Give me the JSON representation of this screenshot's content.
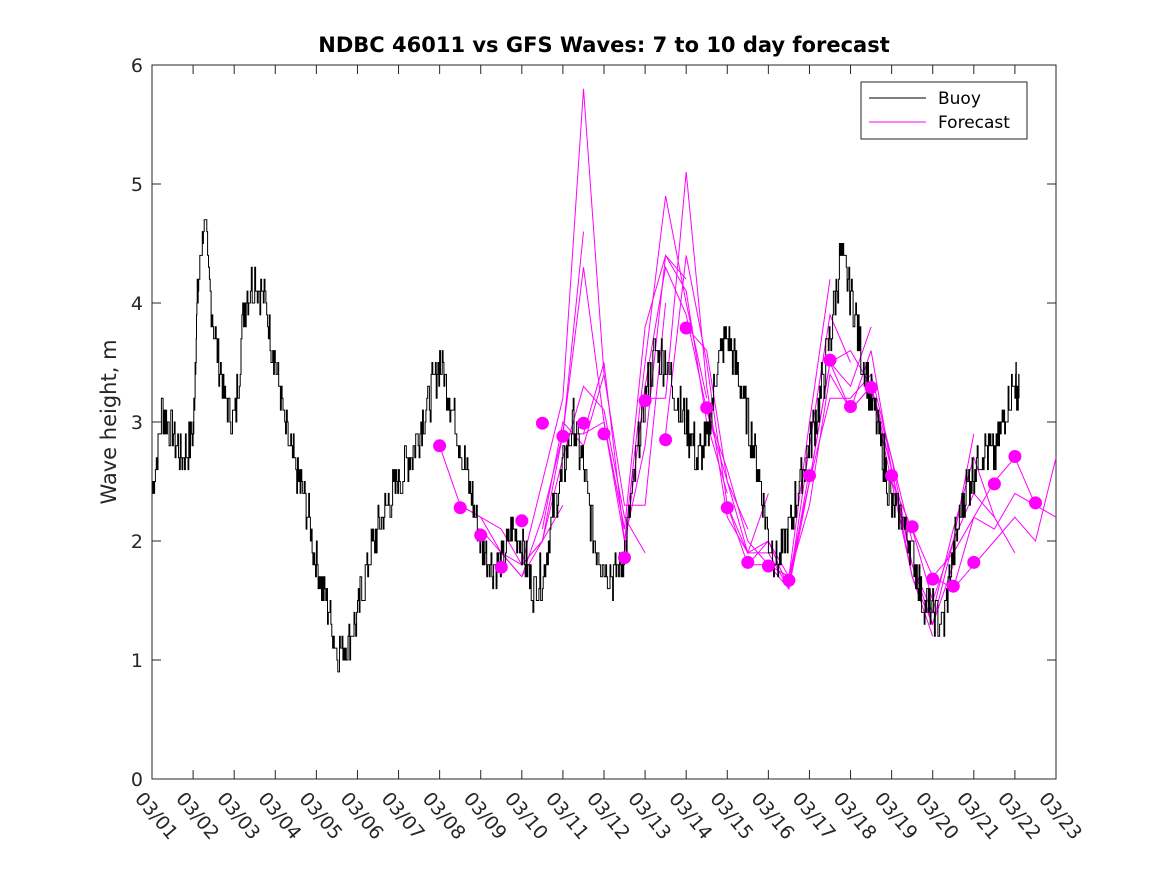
{
  "chart_data": {
    "type": "line",
    "title": "NDBC 46011 vs GFS Waves: 7 to 10 day forecast",
    "xlabel": "",
    "ylabel": "Wave height, m",
    "xlim": [
      0,
      22
    ],
    "ylim": [
      0,
      6
    ],
    "yticks": [
      0,
      1,
      2,
      3,
      4,
      5,
      6
    ],
    "xtick_labels": [
      "03/01",
      "03/02",
      "03/03",
      "03/04",
      "03/05",
      "03/06",
      "03/07",
      "03/08",
      "03/09",
      "03/10",
      "03/11",
      "03/12",
      "03/13",
      "03/14",
      "03/15",
      "03/16",
      "03/17",
      "03/18",
      "03/19",
      "03/20",
      "03/21",
      "03/22",
      "03/23"
    ],
    "grid": false,
    "legend": {
      "location": "top-right",
      "entries": [
        "Buoy",
        "Forecast"
      ]
    },
    "colors": {
      "buoy": "#000000",
      "forecast": "#ff00ff"
    },
    "buoy": {
      "name": "Buoy",
      "x": [
        0,
        0.25,
        0.5,
        0.75,
        1.0,
        1.1,
        1.25,
        1.5,
        1.75,
        2.0,
        2.25,
        2.5,
        2.75,
        3.0,
        3.25,
        3.5,
        3.75,
        4.0,
        4.25,
        4.5,
        4.75,
        5.0,
        5.25,
        5.5,
        5.75,
        6.0,
        6.25,
        6.5,
        6.75,
        7.0,
        7.25,
        7.5,
        7.75,
        8.0,
        8.25,
        8.5,
        8.75,
        9.0,
        9.25,
        9.5,
        9.75,
        10.0,
        10.25,
        10.5,
        10.75,
        11.0,
        11.25,
        11.5,
        11.75,
        12.0,
        12.25,
        12.5,
        12.75,
        13.0,
        13.25,
        13.5,
        13.75,
        14.0,
        14.25,
        14.5,
        14.75,
        15.0,
        15.25,
        15.5,
        15.75,
        16.0,
        16.25,
        16.5,
        16.75,
        17.0,
        17.25,
        17.5,
        17.75,
        18.0,
        18.25,
        18.5,
        18.75,
        19.0,
        19.25,
        19.5,
        19.75,
        20.0,
        20.25,
        20.5,
        20.75,
        21.0,
        21.1
      ],
      "values": [
        2.4,
        3.1,
        2.9,
        2.7,
        2.9,
        4.0,
        4.7,
        3.8,
        3.2,
        3.0,
        4.0,
        4.2,
        4.0,
        3.5,
        2.9,
        2.6,
        2.3,
        1.8,
        1.5,
        1.1,
        1.15,
        1.4,
        1.8,
        2.1,
        2.3,
        2.5,
        2.7,
        2.9,
        3.2,
        3.5,
        3.2,
        2.8,
        2.4,
        2.0,
        1.8,
        1.8,
        2.1,
        2.0,
        1.6,
        1.7,
        2.2,
        2.6,
        3.0,
        2.6,
        2.0,
        1.8,
        1.7,
        1.9,
        2.6,
        3.2,
        3.6,
        3.5,
        3.2,
        3.0,
        2.7,
        2.8,
        3.5,
        3.7,
        3.4,
        3.0,
        2.6,
        2.0,
        1.8,
        2.1,
        2.5,
        2.8,
        3.2,
        3.7,
        4.4,
        4.1,
        3.6,
        3.2,
        2.8,
        2.3,
        2.2,
        1.9,
        1.5,
        1.4,
        1.3,
        1.9,
        2.4,
        2.6,
        2.8,
        2.7,
        3.1,
        3.3,
        3.2
      ]
    },
    "forecasts": [
      {
        "x": [
          7.0,
          7.5,
          8.0,
          8.5,
          9.0,
          9.5,
          10.0
        ],
        "values": [
          2.8,
          2.3,
          2.2,
          2.1,
          1.8,
          2.0,
          2.3
        ]
      },
      {
        "x": [
          7.5,
          8.0,
          8.5,
          9.0,
          9.5,
          10.0,
          10.5
        ],
        "values": [
          2.3,
          2.2,
          1.9,
          1.7,
          2.0,
          2.9,
          4.6
        ]
      },
      {
        "x": [
          8.0,
          8.5,
          9.0,
          9.5,
          10.0,
          10.5,
          11.0
        ],
        "values": [
          2.1,
          1.9,
          1.8,
          2.5,
          3.2,
          5.8,
          3.4
        ]
      },
      {
        "x": [
          8.5,
          9.0,
          9.5,
          10.0,
          10.5,
          11.0,
          11.5
        ],
        "values": [
          1.9,
          1.7,
          2.2,
          2.9,
          4.3,
          3.0,
          2.1
        ]
      },
      {
        "x": [
          9.0,
          9.5,
          10.0,
          10.5,
          11.0,
          11.5,
          12.0
        ],
        "values": [
          1.8,
          2.0,
          2.7,
          3.3,
          3.1,
          2.2,
          1.9
        ]
      },
      {
        "x": [
          9.5,
          10.0,
          10.5,
          11.0,
          11.5,
          12.0,
          12.5
        ],
        "values": [
          2.1,
          3.0,
          2.8,
          3.4,
          2.3,
          2.3,
          4.0
        ]
      },
      {
        "x": [
          10.0,
          10.5,
          11.0,
          11.5,
          12.0,
          12.5,
          13.0
        ],
        "values": [
          2.9,
          2.9,
          3.0,
          2.0,
          2.8,
          4.4,
          4.2
        ]
      },
      {
        "x": [
          10.5,
          11.0,
          11.5,
          12.0,
          12.5,
          13.0,
          13.5
        ],
        "values": [
          2.9,
          3.5,
          2.0,
          3.5,
          4.9,
          4.0,
          3.2
        ]
      },
      {
        "x": [
          11.0,
          11.5,
          12.0,
          12.5,
          13.0,
          13.5,
          14.0
        ],
        "values": [
          3.0,
          2.1,
          3.8,
          4.4,
          4.1,
          3.0,
          2.4
        ]
      },
      {
        "x": [
          11.5,
          12.0,
          12.5,
          13.0,
          13.5,
          14.0,
          14.5
        ],
        "values": [
          1.9,
          3.3,
          4.3,
          3.9,
          3.1,
          2.5,
          2.1
        ]
      },
      {
        "x": [
          12.0,
          12.5,
          13.0,
          13.5,
          14.0,
          14.5,
          15.0
        ],
        "values": [
          3.2,
          3.2,
          5.1,
          3.3,
          2.2,
          1.9,
          2.4
        ]
      },
      {
        "x": [
          12.5,
          13.0,
          13.5,
          14.0,
          14.5,
          15.0,
          15.5
        ],
        "values": [
          2.9,
          4.4,
          3.5,
          2.3,
          1.8,
          2.0,
          1.7
        ]
      },
      {
        "x": [
          13.0,
          13.5,
          14.0,
          14.5,
          15.0,
          15.5,
          16.0
        ],
        "values": [
          3.8,
          3.6,
          2.5,
          1.9,
          2.0,
          1.6,
          2.6
        ]
      },
      {
        "x": [
          13.5,
          14.0,
          14.5,
          15.0,
          15.5,
          16.0,
          16.5
        ],
        "values": [
          3.1,
          2.6,
          2.0,
          1.8,
          1.7,
          3.0,
          4.2
        ]
      },
      {
        "x": [
          14.0,
          14.5,
          15.0,
          15.5,
          16.0,
          16.5,
          17.0
        ],
        "values": [
          2.3,
          1.9,
          1.9,
          1.6,
          2.8,
          3.9,
          3.5
        ]
      },
      {
        "x": [
          14.5,
          15.0,
          15.5,
          16.0,
          16.5,
          17.0,
          17.5
        ],
        "values": [
          1.8,
          1.8,
          1.6,
          2.5,
          3.5,
          3.3,
          3.8
        ]
      },
      {
        "x": [
          15.0,
          15.5,
          16.0,
          16.5,
          17.0,
          17.5,
          18.0
        ],
        "values": [
          1.8,
          1.7,
          2.3,
          3.4,
          3.1,
          3.6,
          2.6
        ]
      },
      {
        "x": [
          15.5,
          16.0,
          16.5,
          17.0,
          17.5,
          18.0,
          18.5
        ],
        "values": [
          1.7,
          2.5,
          3.2,
          3.2,
          3.4,
          2.7,
          2.0
        ]
      },
      {
        "x": [
          16.0,
          16.5,
          17.0,
          17.5,
          18.0,
          18.5,
          19.0
        ],
        "values": [
          2.5,
          3.5,
          3.6,
          3.3,
          2.5,
          1.7,
          1.2
        ]
      },
      {
        "x": [
          16.5,
          17.0,
          17.5,
          18.0,
          18.5,
          19.0,
          19.5
        ],
        "values": [
          3.5,
          3.1,
          3.3,
          2.6,
          1.7,
          1.3,
          1.8
        ]
      },
      {
        "x": [
          17.0,
          17.5,
          18.0,
          18.5,
          19.0,
          19.5,
          20.0
        ],
        "values": [
          3.1,
          3.3,
          2.7,
          1.8,
          1.3,
          2.0,
          2.9
        ]
      },
      {
        "x": [
          17.5,
          18.0,
          18.5,
          19.0,
          19.5,
          20.0,
          20.5
        ],
        "values": [
          3.3,
          2.6,
          1.8,
          1.4,
          2.1,
          2.7,
          2.2
        ]
      },
      {
        "x": [
          18.0,
          18.5,
          19.0,
          19.5,
          20.0,
          20.5,
          21.0
        ],
        "values": [
          2.5,
          2.1,
          1.5,
          2.0,
          2.4,
          2.2,
          1.9
        ]
      },
      {
        "x": [
          18.5,
          19.0,
          19.5,
          20.0,
          20.5,
          21.0,
          21.5
        ],
        "values": [
          2.1,
          1.7,
          1.9,
          2.2,
          2.1,
          2.4,
          2.3
        ]
      },
      {
        "x": [
          19.0,
          19.5,
          20.0,
          20.5,
          21.0,
          21.5,
          22.0
        ],
        "values": [
          1.7,
          1.6,
          2.2,
          2.5,
          2.7,
          2.3,
          2.2
        ]
      },
      {
        "x": [
          19.5,
          20.0,
          20.5,
          21.0,
          21.5,
          22.0
        ],
        "values": [
          1.6,
          1.8,
          2.0,
          2.2,
          2.0,
          2.7
        ]
      }
    ],
    "forecast_markers": {
      "x": [
        7.0,
        7.5,
        8.0,
        8.5,
        9.0,
        9.5,
        10.0,
        10.5,
        11.0,
        11.5,
        12.0,
        12.5,
        13.0,
        13.5,
        14.0,
        14.5,
        15.0,
        15.5,
        16.0,
        16.5,
        17.0,
        17.5,
        18.0,
        18.5,
        19.0,
        19.5,
        20.0,
        20.5,
        21.0,
        21.5
      ],
      "values": [
        2.8,
        2.28,
        2.05,
        1.78,
        2.17,
        2.99,
        2.88,
        2.99,
        2.9,
        1.86,
        3.18,
        2.85,
        3.79,
        3.12,
        2.28,
        1.82,
        1.79,
        1.67,
        2.55,
        3.52,
        3.13,
        3.29,
        2.55,
        2.12,
        1.68,
        1.62,
        1.82,
        2.48,
        2.71,
        2.32
      ]
    }
  }
}
